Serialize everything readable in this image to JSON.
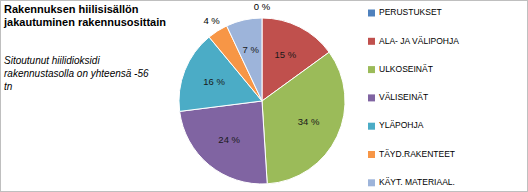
{
  "chart_data": {
    "type": "pie",
    "title": "Rakennuksen hiilisisällön jakautuminen rakennusosittain",
    "subtitle": "Sitoutunut hiilidioksidi rakennustasolla on yhteensä -56 tn",
    "categories": [
      "PERUSTUKSET",
      "ALA- JA VÄLIPOHJA",
      "ULKOSEINÄT",
      "VÄLISEINÄT",
      "YLÄPOHJA",
      "TÄYD.RAKENTEET",
      "KÄYT. MATERIAAL."
    ],
    "values": [
      0,
      15,
      34,
      24,
      16,
      4,
      7
    ],
    "value_labels": [
      "0 %",
      "15 %",
      "34 %",
      "24 %",
      "16 %",
      "4 %",
      "7 %"
    ],
    "colors": [
      "#4f81bd",
      "#c0504d",
      "#9bbb59",
      "#8064a2",
      "#4bacc6",
      "#f79646",
      "#9db4da"
    ],
    "data_labels": true,
    "legend": "right"
  }
}
